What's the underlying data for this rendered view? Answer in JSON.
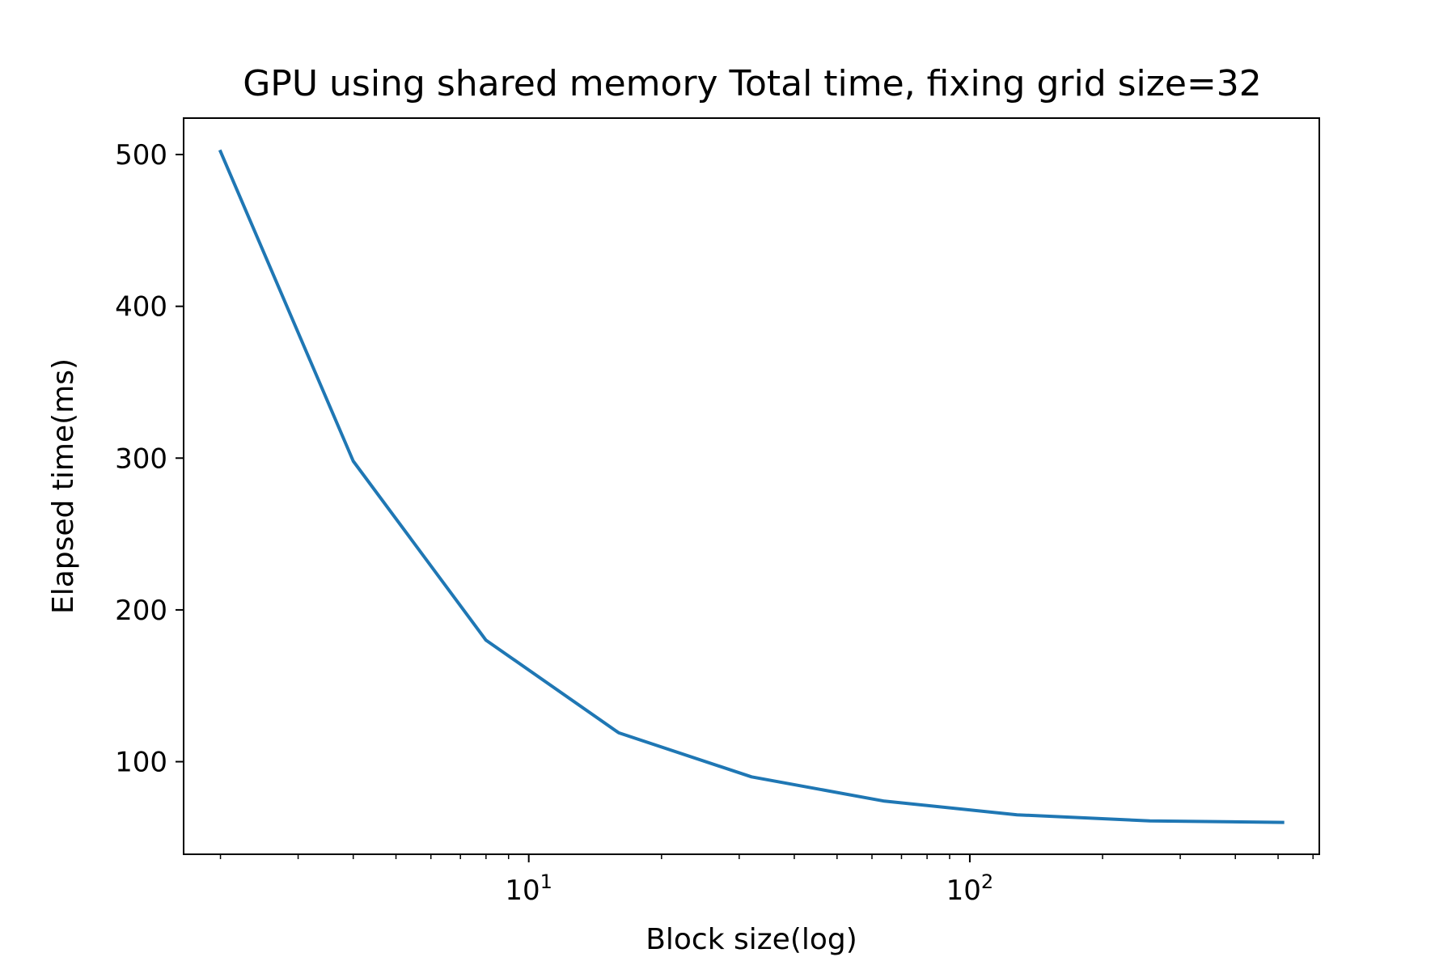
{
  "chart_data": {
    "type": "line",
    "title": "GPU using shared memory Total time, fixing grid size=32",
    "xlabel": "Block size(log)",
    "ylabel": "Elapsed time(ms)",
    "xscale": "log",
    "xlim": [
      1.65,
      620
    ],
    "ylim": [
      39,
      524
    ],
    "grid": false,
    "x_ticks": [
      {
        "value": 10,
        "base": "10",
        "exp": "1"
      },
      {
        "value": 100,
        "base": "10",
        "exp": "2"
      }
    ],
    "y_ticks": [
      100,
      200,
      300,
      400,
      500
    ],
    "series": [
      {
        "color": "#1f77b4",
        "points": [
          {
            "x": 2,
            "y": 502
          },
          {
            "x": 4,
            "y": 298
          },
          {
            "x": 8,
            "y": 180
          },
          {
            "x": 16,
            "y": 119
          },
          {
            "x": 32,
            "y": 90
          },
          {
            "x": 64,
            "y": 74
          },
          {
            "x": 128,
            "y": 65
          },
          {
            "x": 256,
            "y": 61
          },
          {
            "x": 512,
            "y": 60
          }
        ]
      }
    ]
  }
}
